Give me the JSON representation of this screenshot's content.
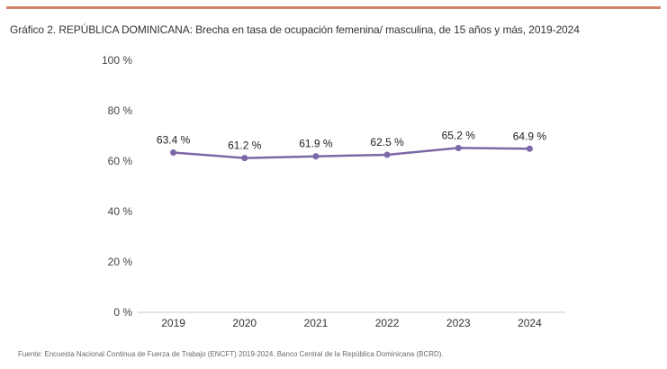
{
  "header": {
    "accent_color": "#d4836a",
    "title": "Gráfico 2. REPÚBLICA DOMINICANA: Brecha en tasa de ocupación femenina/ masculina, de 15 años y más, 2019-2024"
  },
  "chart_data": {
    "type": "line",
    "title": "Gráfico 2. REPÚBLICA DOMINICANA: Brecha en tasa de ocupación femenina/ masculina, de 15 años y más, 2019-2024",
    "categories": [
      "2019",
      "2020",
      "2021",
      "2022",
      "2023",
      "2024"
    ],
    "series": [
      {
        "values": [
          63.4,
          61.2,
          61.9,
          62.5,
          65.2,
          64.9
        ],
        "labels": [
          "63.4 %",
          "61.2 %",
          "61.9 %",
          "62.5 %",
          "65.2 %",
          "64.9 %"
        ],
        "color": "#7b68a6"
      }
    ],
    "ylim": [
      0,
      100
    ],
    "yticks": [
      0,
      20,
      40,
      60,
      80,
      100
    ],
    "ytick_labels": [
      "0 %",
      "20 %",
      "40 %",
      "60 %",
      "80 %",
      "100 %"
    ],
    "grid": false,
    "axis_color": "#c8c8c8",
    "xlabel": "",
    "ylabel": ""
  },
  "footer": {
    "source": "Fuente: Encuesta Nacional Continua de Fuerza de Trabajo (ENCFT) 2019-2024. Banco Central de la República Dominicana (BCRD)."
  }
}
